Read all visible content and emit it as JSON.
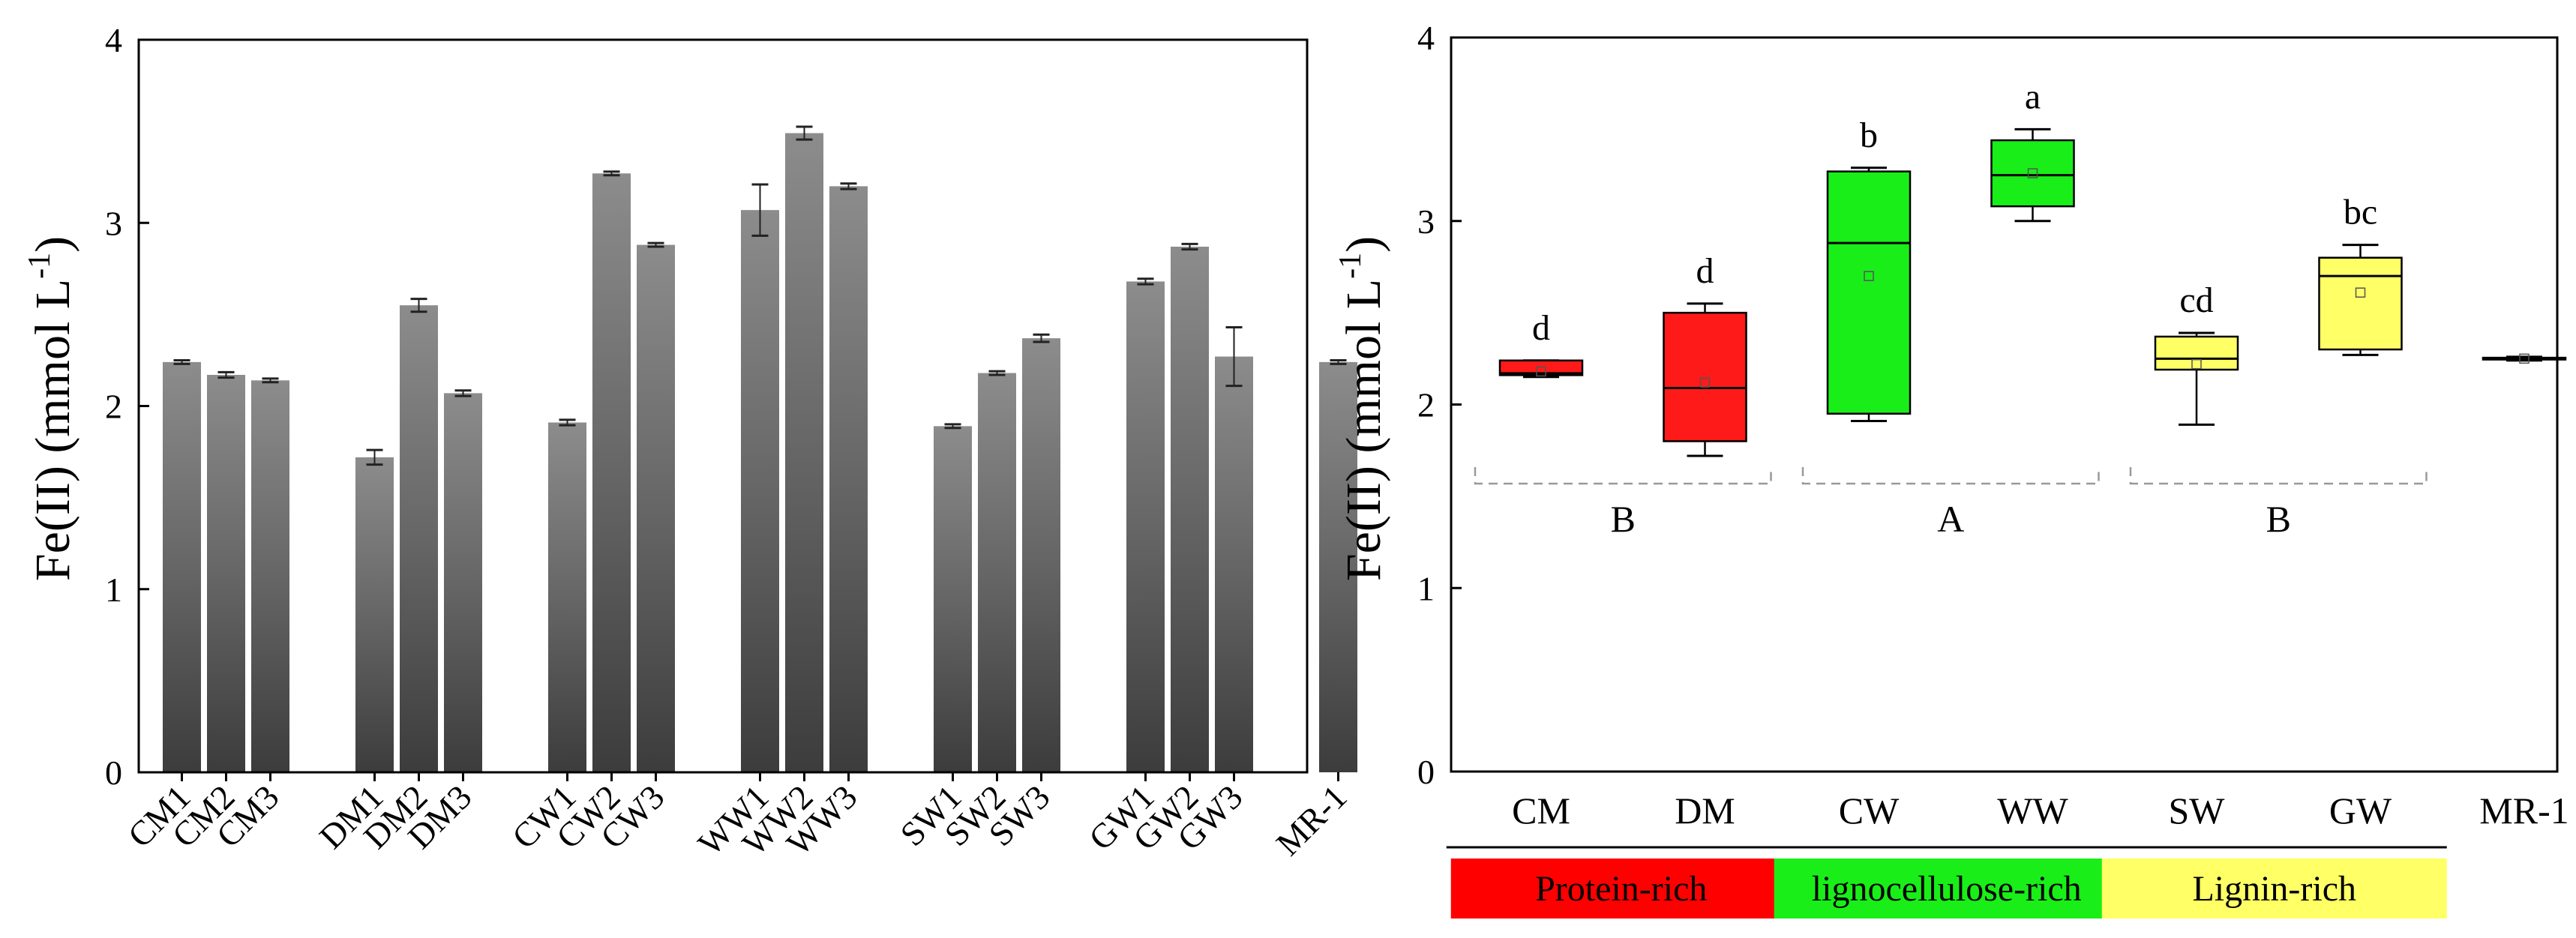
{
  "chart_data": [
    {
      "type": "bar",
      "title": "",
      "ylabel": "Fe(II) (mmol L",
      "ylabel_sup": "-1",
      "ylabel_close": ")",
      "xlabel": "",
      "ylim": [
        0,
        4
      ],
      "yticks": [
        "0",
        "1",
        "2",
        "3",
        "4"
      ],
      "bar_color": "#808080",
      "groups": [
        {
          "name": "CM",
          "bars": [
            {
              "label": "CM1",
              "value": 2.24,
              "error": 0.01
            },
            {
              "label": "CM2",
              "value": 2.17,
              "error": 0.015
            },
            {
              "label": "CM3",
              "value": 2.14,
              "error": 0.01
            }
          ]
        },
        {
          "name": "DM",
          "bars": [
            {
              "label": "DM1",
              "value": 1.72,
              "error": 0.04
            },
            {
              "label": "DM2",
              "value": 2.55,
              "error": 0.035
            },
            {
              "label": "DM3",
              "value": 2.07,
              "error": 0.015
            }
          ]
        },
        {
          "name": "CW",
          "bars": [
            {
              "label": "CW1",
              "value": 1.91,
              "error": 0.015
            },
            {
              "label": "CW2",
              "value": 3.27,
              "error": 0.01
            },
            {
              "label": "CW3",
              "value": 2.88,
              "error": 0.01
            }
          ]
        },
        {
          "name": "WW",
          "bars": [
            {
              "label": "WW1",
              "value": 3.07,
              "error": 0.14
            },
            {
              "label": "WW2",
              "value": 3.49,
              "error": 0.035
            },
            {
              "label": "WW3",
              "value": 3.2,
              "error": 0.015
            }
          ]
        },
        {
          "name": "SW",
          "bars": [
            {
              "label": "SW1",
              "value": 1.89,
              "error": 0.01
            },
            {
              "label": "SW2",
              "value": 2.18,
              "error": 0.01
            },
            {
              "label": "SW3",
              "value": 2.37,
              "error": 0.02
            }
          ]
        },
        {
          "name": "GW",
          "bars": [
            {
              "label": "GW1",
              "value": 2.68,
              "error": 0.015
            },
            {
              "label": "GW2",
              "value": 2.87,
              "error": 0.015
            },
            {
              "label": "GW3",
              "value": 2.27,
              "error": 0.16
            }
          ]
        },
        {
          "name": "MR-1",
          "bars": [
            {
              "label": "MR-1",
              "value": 2.24,
              "error": 0.01
            }
          ]
        }
      ]
    },
    {
      "type": "box",
      "title": "",
      "ylabel": "Fe(II) (mmol L",
      "ylabel_sup": "-1",
      "ylabel_close": ")",
      "ylim": [
        0,
        4
      ],
      "yticks": [
        "0",
        "1",
        "2",
        "3",
        "4"
      ],
      "categories": [
        "CM",
        "DM",
        "CW",
        "WW",
        "SW",
        "GW",
        "MR-1"
      ],
      "boxes": [
        {
          "category": "CM",
          "min": 2.15,
          "q1": 2.16,
          "median": 2.17,
          "q3": 2.24,
          "max": 2.24,
          "mean": 2.18,
          "letter": "d",
          "fill": "#ff1a1a"
        },
        {
          "category": "DM",
          "min": 1.72,
          "q1": 1.8,
          "median": 2.09,
          "q3": 2.5,
          "max": 2.55,
          "mean": 2.12,
          "letter": "d",
          "fill": "#ff1a1a"
        },
        {
          "category": "CW",
          "min": 1.91,
          "q1": 1.95,
          "median": 2.88,
          "q3": 3.27,
          "max": 3.29,
          "mean": 2.7,
          "letter": "b",
          "fill": "#19ee19"
        },
        {
          "category": "WW",
          "min": 3.0,
          "q1": 3.08,
          "median": 3.25,
          "q3": 3.44,
          "max": 3.5,
          "mean": 3.26,
          "letter": "a",
          "fill": "#19ee19"
        },
        {
          "category": "SW",
          "min": 1.89,
          "q1": 2.19,
          "median": 2.25,
          "q3": 2.37,
          "max": 2.39,
          "mean": 2.22,
          "letter": "cd",
          "fill": "#ffff66"
        },
        {
          "category": "GW",
          "min": 2.27,
          "q1": 2.3,
          "median": 2.7,
          "q3": 2.8,
          "max": 2.87,
          "mean": 2.61,
          "letter": "bc",
          "fill": "#ffff66"
        },
        {
          "category": "MR-1",
          "min": 2.24,
          "q1": 2.245,
          "median": 2.25,
          "q3": 2.255,
          "max": 2.26,
          "mean": 2.25,
          "letter": "",
          "fill": "#808080"
        }
      ],
      "group_brackets": [
        {
          "from": "CM",
          "to": "DM",
          "letter": "B"
        },
        {
          "from": "CW",
          "to": "WW",
          "letter": "A"
        },
        {
          "from": "SW",
          "to": "GW",
          "letter": "B"
        }
      ],
      "category_bands": [
        {
          "label": "Protein-rich",
          "from": "CM",
          "to": "DM",
          "color": "#ff0000"
        },
        {
          "label": "lignocellulose-rich",
          "from": "CW",
          "to": "WW",
          "color": "#19ee19"
        },
        {
          "label": "Lignin-rich",
          "from": "SW",
          "to": "GW",
          "color": "#ffff66"
        }
      ]
    }
  ]
}
